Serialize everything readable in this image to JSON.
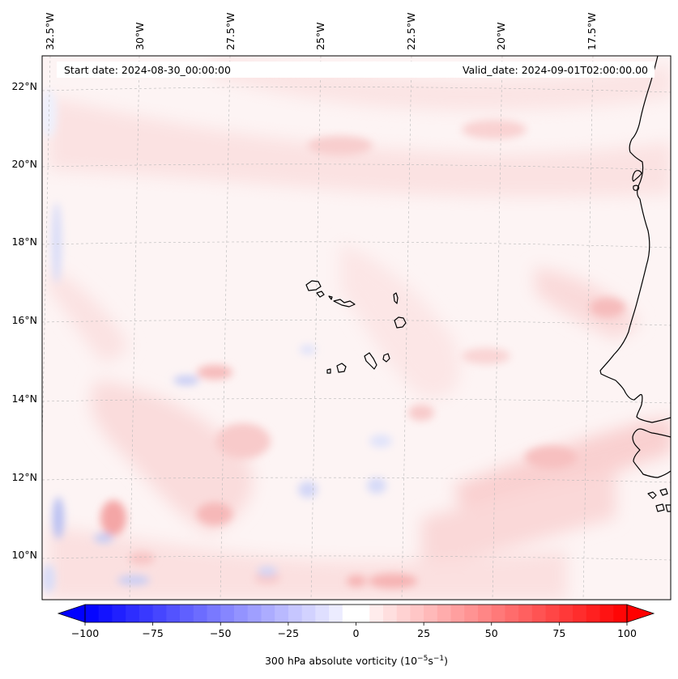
{
  "header": {
    "start_date": "Start date: 2024-08-30_00:00:00",
    "valid_date": "Valid_date: 2024-09-01T02:00:00.00"
  },
  "lon_labels": [
    "32.5°W",
    "30°W",
    "27.5°W",
    "25°W",
    "22.5°W",
    "20°W",
    "17.5°W"
  ],
  "lat_labels": [
    "22°N",
    "20°N",
    "18°N",
    "16°N",
    "14°N",
    "12°N",
    "10°N"
  ],
  "colorbar": {
    "label_prefix": "300 hPa absolute vorticity (10",
    "label_exp1": "−5",
    "label_mid": "s",
    "label_exp2": "−1",
    "label_suffix": ")",
    "ticks": [
      "−100",
      "−75",
      "−50",
      "−25",
      "0",
      "25",
      "50",
      "75",
      "100"
    ],
    "min": -100,
    "max": 100,
    "levels": 40,
    "neg_color": "#0000ff",
    "pos_color": "#ff0000",
    "extend": "both"
  },
  "colors": {
    "background_field": "#fdf3f3",
    "coastline": "#000000",
    "gridline": "#b8b8b8"
  }
}
